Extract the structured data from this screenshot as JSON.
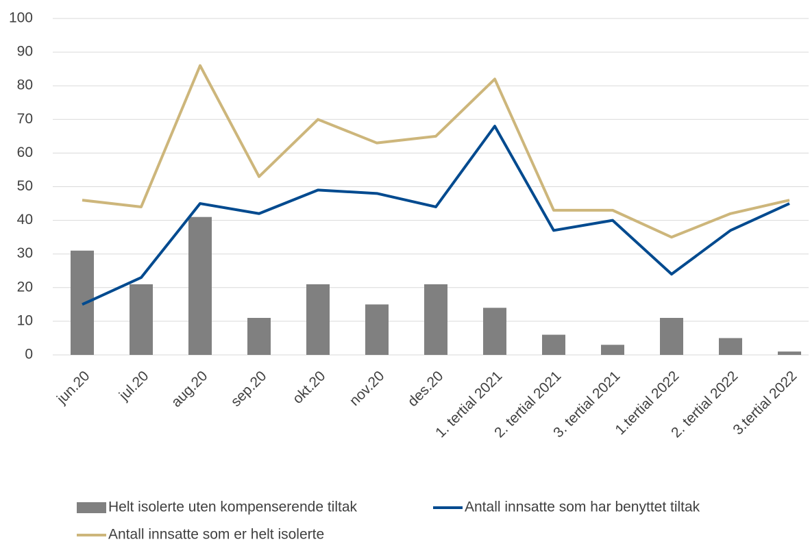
{
  "chart_data": {
    "type": "combo",
    "categories": [
      "jun.20",
      "jul.20",
      "aug.20",
      "sep.20",
      "okt.20",
      "nov.20",
      "des.20",
      "1. tertial 2021",
      "2. tertial 2021",
      "3. tertial 2021",
      "1.tertial 2022",
      "2. tertial 2022",
      "3.tertial 2022"
    ],
    "series": [
      {
        "name": "Helt isolerte uten kompenserende tiltak",
        "type": "bar",
        "color": "#808080",
        "values": [
          31,
          21,
          41,
          11,
          21,
          15,
          21,
          14,
          6,
          3,
          11,
          5,
          1
        ]
      },
      {
        "name": "Antall innsatte som har benyttet tiltak",
        "type": "line",
        "color": "#004a8f",
        "values": [
          15,
          23,
          45,
          42,
          49,
          48,
          44,
          68,
          37,
          40,
          24,
          37,
          45
        ]
      },
      {
        "name": "Antall innsatte som er helt isolerte",
        "type": "line",
        "color": "#cdb67b",
        "values": [
          46,
          44,
          86,
          53,
          70,
          63,
          65,
          82,
          43,
          43,
          35,
          42,
          46
        ]
      }
    ],
    "ylim": [
      0,
      100
    ],
    "yticks": [
      0,
      10,
      20,
      30,
      40,
      50,
      60,
      70,
      80,
      90,
      100
    ],
    "grid": true,
    "legend": "bottom"
  }
}
